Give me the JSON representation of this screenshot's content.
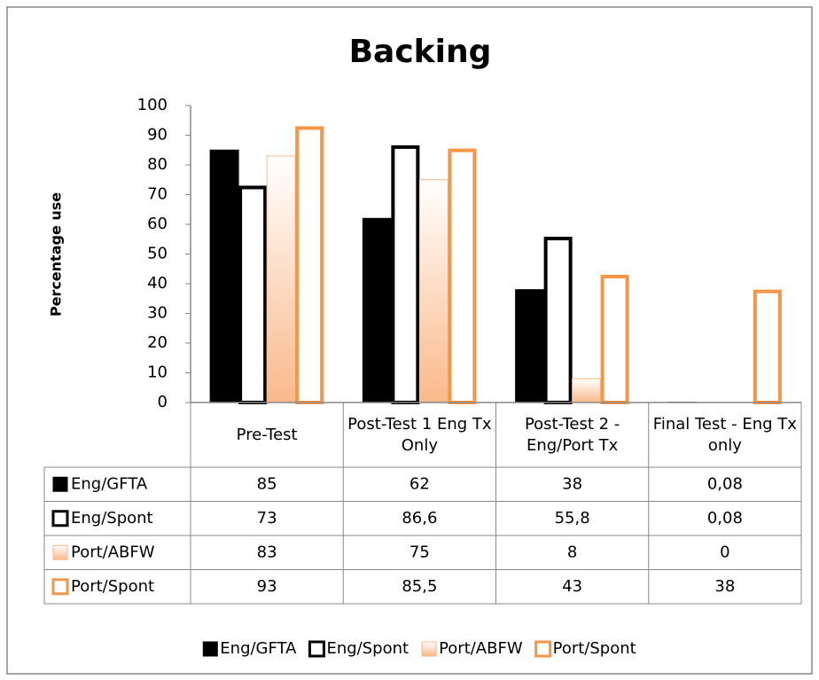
{
  "chart_data": {
    "type": "bar",
    "title": "Backing",
    "y_label": "Percentage use",
    "categories": [
      "Pre-Test",
      "Post-Test 1 Eng Tx Only",
      "Post-Test 2 - Eng/Port Tx",
      "Final Test - Eng Tx only"
    ],
    "series": [
      {
        "name": "Eng/GFTA",
        "color": "#000000",
        "fill": "solid",
        "values": [
          85,
          62,
          38,
          0.08
        ],
        "value_labels": [
          "85",
          "62",
          "38",
          "0,08"
        ]
      },
      {
        "name": "Eng/Spont",
        "color": "#000000",
        "fill": "outline",
        "values": [
          73,
          86.6,
          55.8,
          0.08
        ],
        "value_labels": [
          "73",
          "86,6",
          "55,8",
          "0,08"
        ]
      },
      {
        "name": "Port/ABFW",
        "color": "#f9b98a",
        "fill": "gradient",
        "values": [
          83,
          75,
          8,
          0
        ],
        "value_labels": [
          "83",
          "75",
          "8",
          "0"
        ]
      },
      {
        "name": "Port/Spont",
        "color": "#f79646",
        "fill": "outline",
        "values": [
          93,
          85.5,
          43,
          38
        ],
        "value_labels": [
          "93",
          "85,5",
          "43",
          "38"
        ]
      }
    ],
    "ylim": [
      0,
      100
    ],
    "yticks": [
      0,
      10,
      20,
      30,
      40,
      50,
      60,
      70,
      80,
      90,
      100
    ],
    "grid": false,
    "legend": "bottom",
    "data_table": true
  }
}
